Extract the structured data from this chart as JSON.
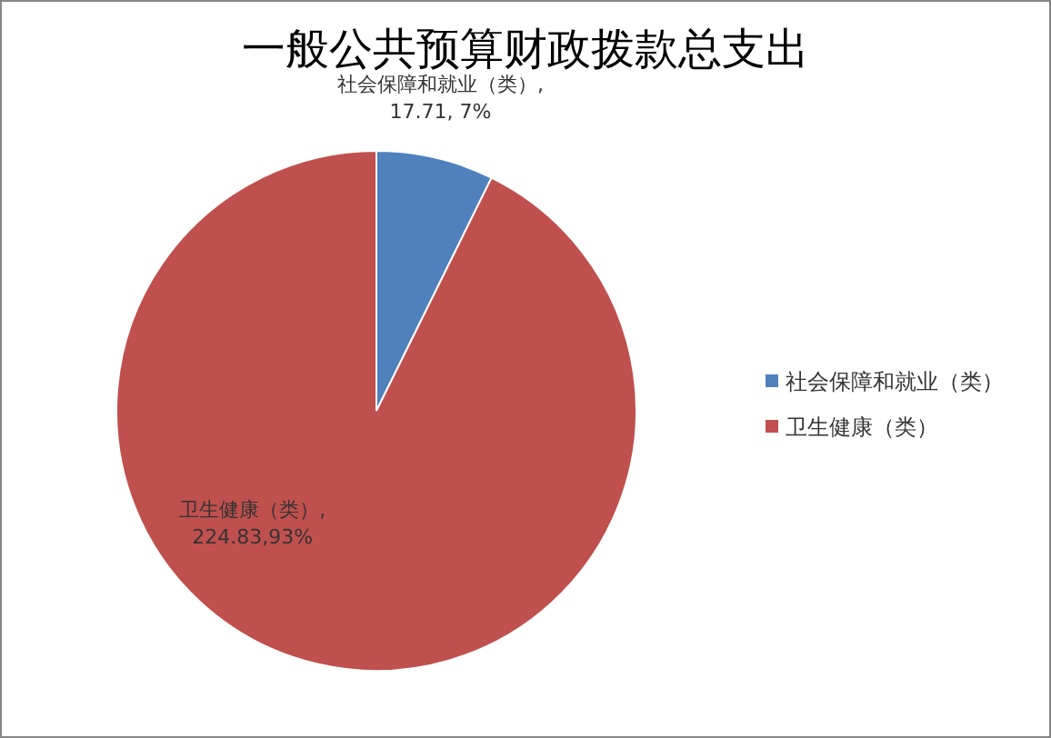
{
  "chart_data": {
    "type": "pie",
    "title": "一般公共预算财政拨款总支出",
    "categories": [
      "社会保障和就业（类）",
      "卫生健康（类）"
    ],
    "values": [
      17.71,
      224.83
    ],
    "colors": [
      "#4f81bd",
      "#c0504d"
    ],
    "value_labels": [
      "社会保障和就业（类）, 17.71, 7%",
      "卫生健康（类）, 224.83,93%"
    ],
    "legend": "right"
  }
}
